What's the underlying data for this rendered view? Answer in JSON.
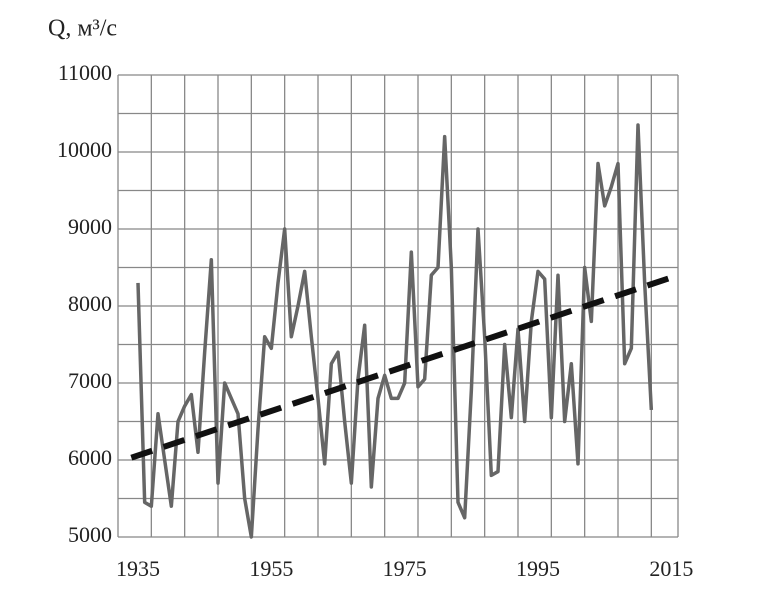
{
  "chart_data": {
    "type": "line",
    "y_label": "Q, м³/с",
    "x": [
      1935,
      1936,
      1937,
      1938,
      1939,
      1940,
      1941,
      1942,
      1943,
      1944,
      1945,
      1946,
      1947,
      1948,
      1949,
      1950,
      1951,
      1952,
      1953,
      1954,
      1955,
      1956,
      1957,
      1958,
      1959,
      1960,
      1961,
      1962,
      1963,
      1964,
      1965,
      1966,
      1967,
      1968,
      1969,
      1970,
      1971,
      1972,
      1973,
      1974,
      1975,
      1976,
      1977,
      1978,
      1979,
      1980,
      1981,
      1982,
      1983,
      1984,
      1985,
      1986,
      1987,
      1988,
      1989,
      1990,
      1991,
      1992,
      1993,
      1994,
      1995,
      1996,
      1997,
      1998,
      1999,
      2000,
      2001,
      2002,
      2003,
      2004,
      2005,
      2006,
      2007,
      2008,
      2009,
      2010,
      2011,
      2012
    ],
    "series": [
      {
        "color": "#666666",
        "width": 3.5,
        "dash": false,
        "values": [
          8300,
          5450,
          5400,
          6600,
          6000,
          5400,
          6500,
          6700,
          6850,
          6100,
          7400,
          8600,
          5700,
          7000,
          6800,
          6600,
          5500,
          5000,
          6400,
          7600,
          7450,
          8300,
          9000,
          7600,
          8000,
          8450,
          7600,
          6800,
          5950,
          7250,
          7400,
          6500,
          5700,
          7050,
          7750,
          5650,
          6800,
          7100,
          6800,
          6800,
          7000,
          8700,
          6950,
          7050,
          8400,
          8500,
          10200,
          8500,
          5450,
          5250,
          6900,
          9000,
          7600,
          5800,
          5850,
          7500,
          6550,
          7700,
          6500,
          7800,
          8450,
          8350,
          6550,
          8400,
          6500,
          7250,
          5950,
          8500,
          7800,
          9850,
          9300,
          9550,
          9850,
          7250,
          7450,
          10350,
          8300,
          6650
        ]
      },
      {
        "color": "#111111",
        "width": 6,
        "dash": true,
        "x": [
          1934,
          2015
        ],
        "values": [
          6030,
          8370
        ]
      }
    ],
    "xlim": [
      1932,
      2016
    ],
    "xticks": [
      1935,
      1955,
      1975,
      1995,
      2015
    ],
    "xgrid": [
      1932,
      1937,
      1942,
      1947,
      1952,
      1957,
      1962,
      1967,
      1972,
      1977,
      1982,
      1987,
      1992,
      1997,
      2002,
      2007,
      2012,
      2016
    ],
    "ylim": [
      5000,
      11000
    ],
    "yticks": [
      5000,
      6000,
      7000,
      8000,
      9000,
      10000,
      11000
    ],
    "ygrid": [
      5000,
      5500,
      6000,
      6500,
      7000,
      7500,
      8000,
      8500,
      9000,
      9500,
      10000,
      10500,
      11000
    ],
    "grid": true
  }
}
